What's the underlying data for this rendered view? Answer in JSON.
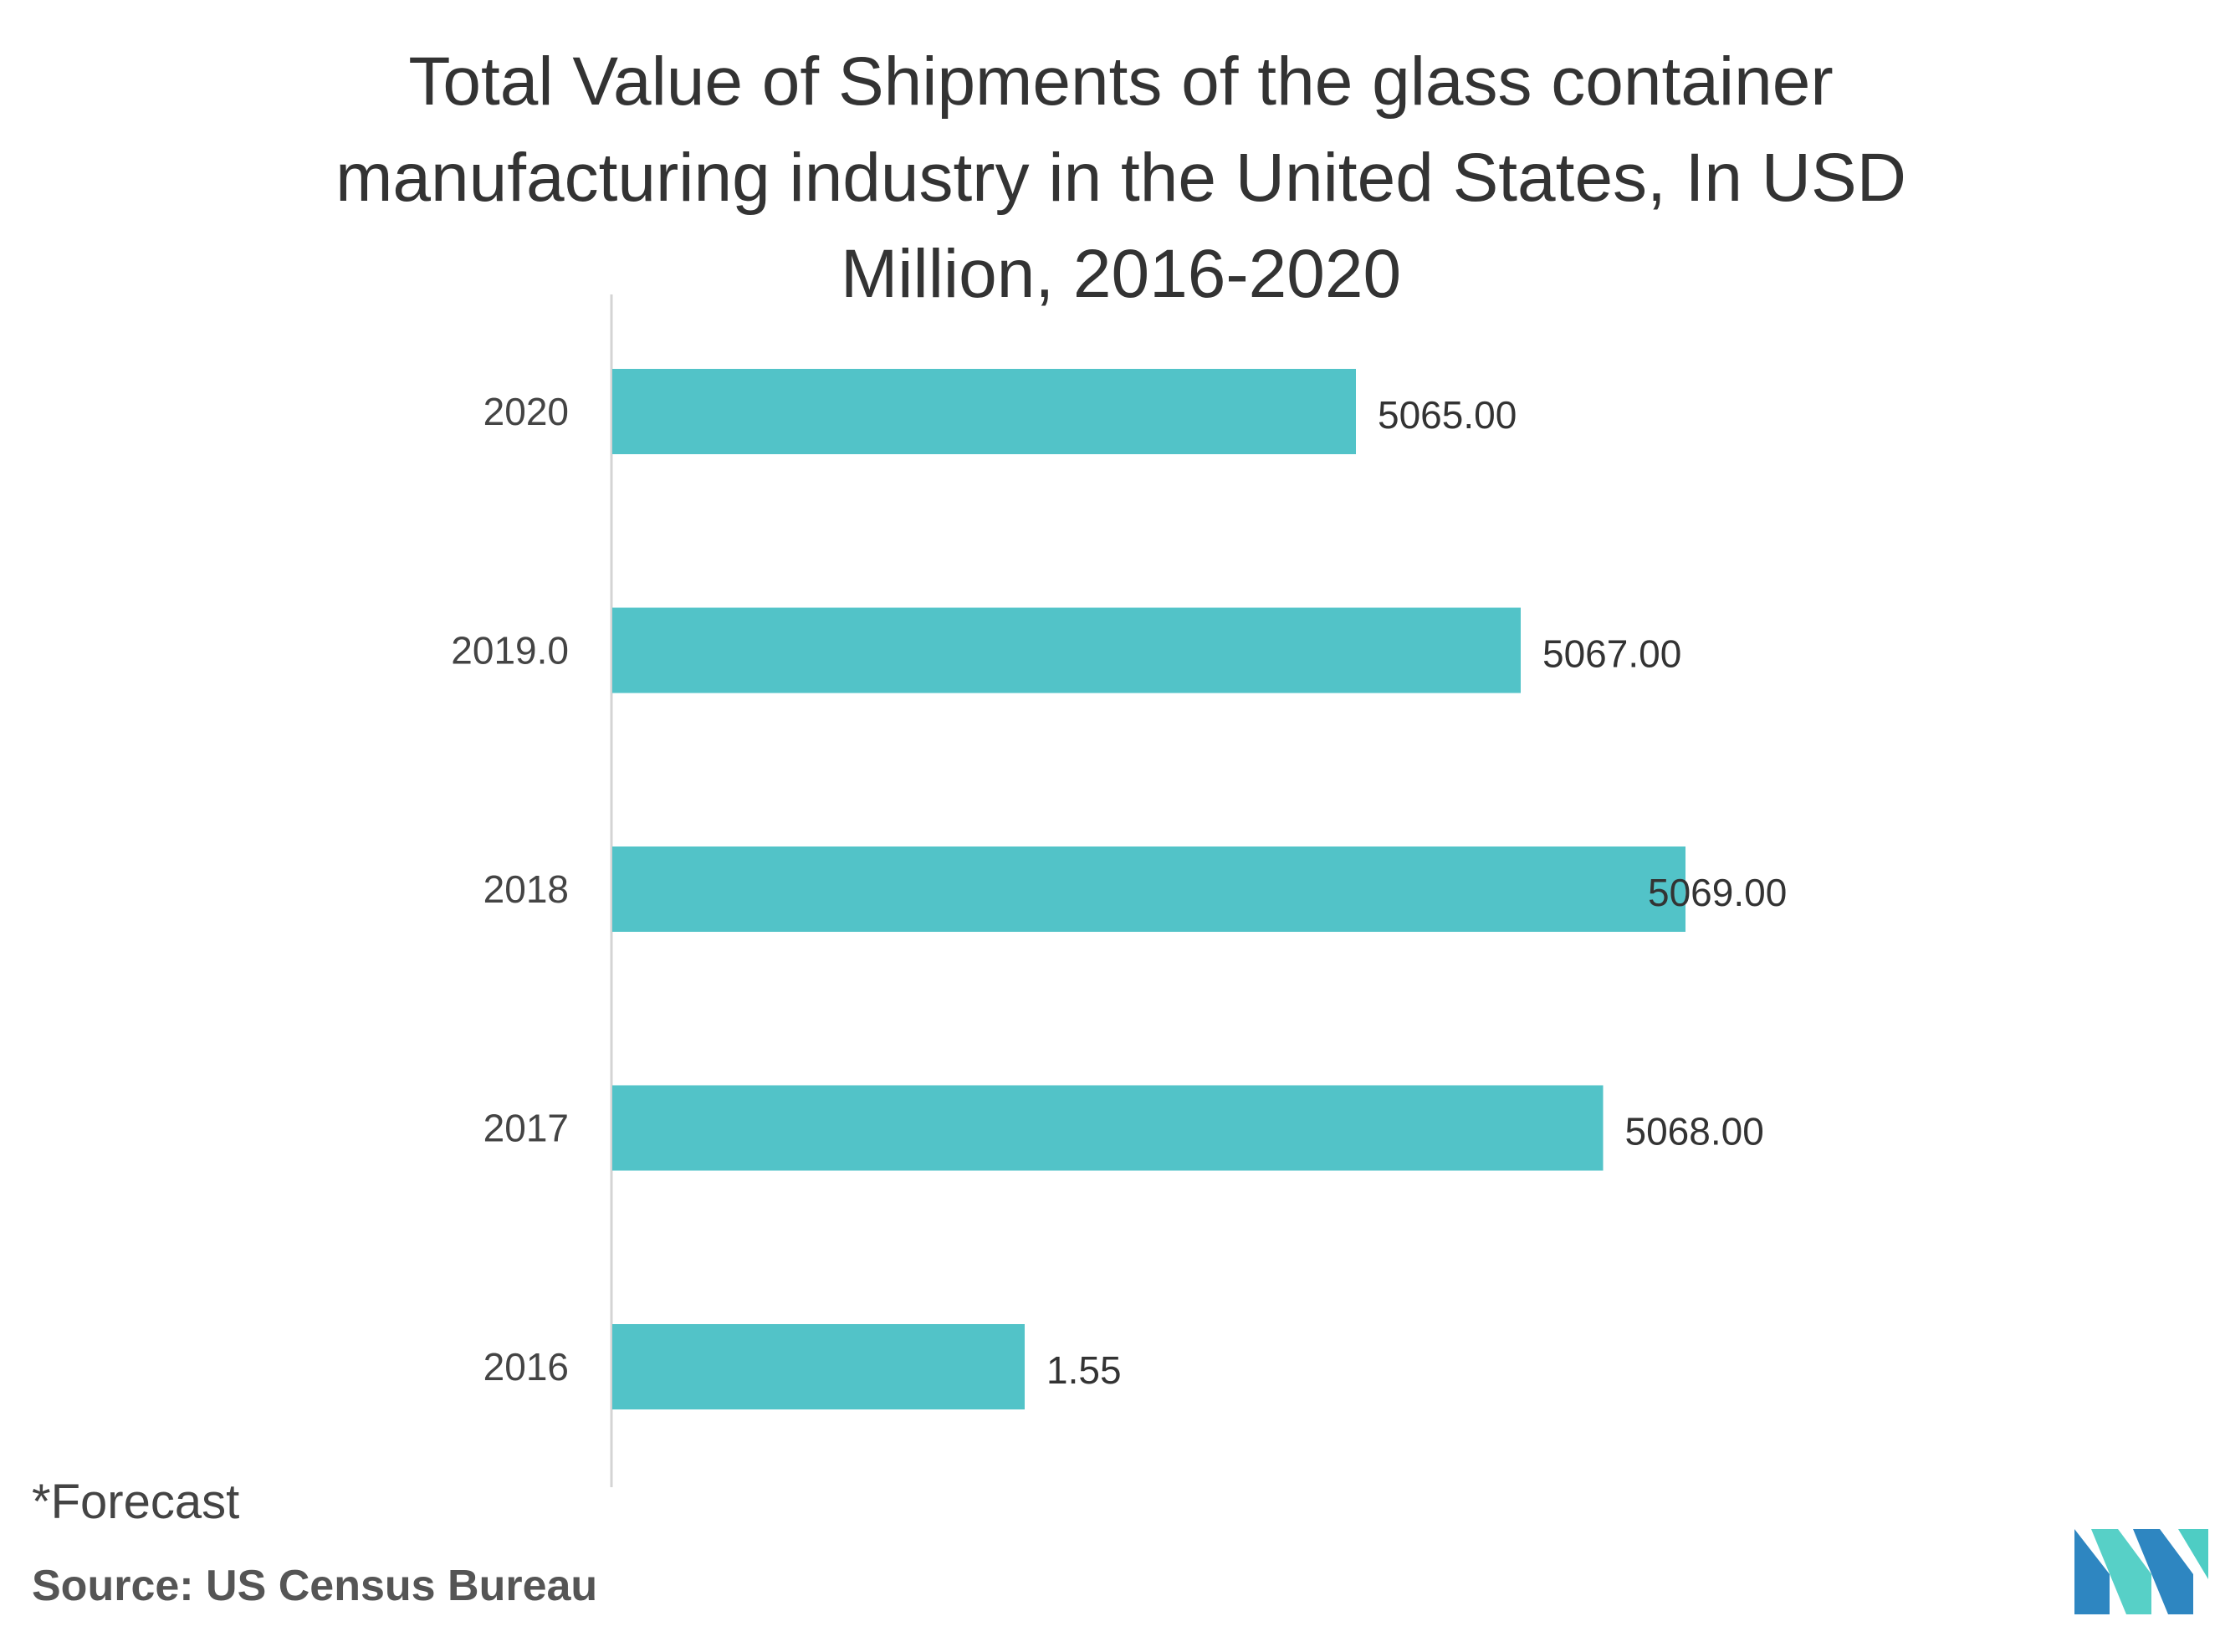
{
  "chart_data": {
    "type": "bar",
    "orientation": "horizontal",
    "title_lines": [
      "Total Value of Shipments of the glass container",
      "manufacturing industry in the United States, In USD",
      "Million, 2016-2020"
    ],
    "categories": [
      "2020",
      "2019.0",
      "2018",
      "2017",
      "2016"
    ],
    "values": [
      5065.0,
      5067.0,
      5069.0,
      5068.0,
      1.55
    ],
    "value_labels": [
      "5065.00",
      "5067.00",
      "5069.00",
      "5068.00",
      "1.55"
    ],
    "xlabel": "",
    "ylabel": "",
    "grid": false,
    "legend": "none",
    "bar_color": "#52c3c8"
  },
  "footnote": "*Forecast",
  "source": "Source: US Census Bureau",
  "colors": {
    "bar": "#52c3c8",
    "axis": "#d4d4d4",
    "text": "#333333",
    "logo_dark": "#2e86c1",
    "logo_light": "#4ecdc4"
  }
}
